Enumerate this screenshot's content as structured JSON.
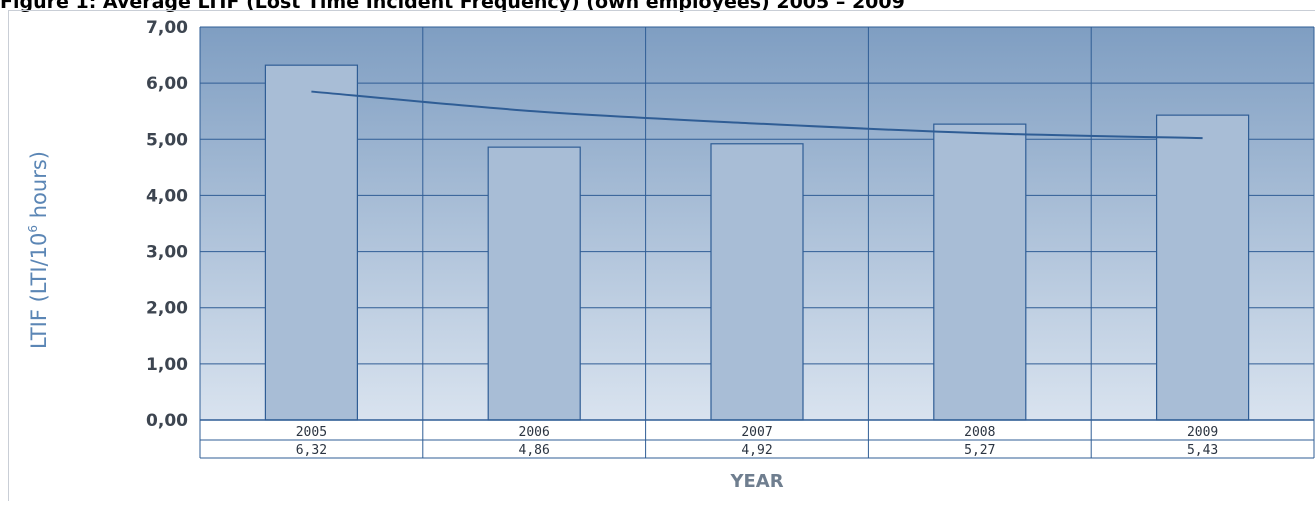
{
  "title": "Figure 1: Average LTIF (Lost Time Incident Frequency) (own employees) 2005 – 2009",
  "chart_data": {
    "type": "bar",
    "categories": [
      "2005",
      "2006",
      "2007",
      "2008",
      "2009"
    ],
    "values": [
      6.32,
      4.86,
      4.92,
      5.27,
      5.43
    ],
    "value_labels": [
      "6,32",
      "4,86",
      "4,92",
      "5,27",
      "5,43"
    ],
    "trendline": [
      5.85,
      5.5,
      5.28,
      5.11,
      5.02
    ],
    "ylim": [
      0,
      7
    ],
    "yticks": [
      "0,00",
      "1,00",
      "2,00",
      "3,00",
      "4,00",
      "5,00",
      "6,00",
      "7,00"
    ],
    "xlabel": "YEAR",
    "ylabel_main": "LTIF (LTI/10",
    "ylabel_sup": "6",
    "ylabel_tail": " hours)",
    "grid": true,
    "colors": {
      "bar_fill": "#a8bdd6",
      "bar_stroke": "#2f5d95",
      "grid": "#2f5d95",
      "trend": "#2f5d95",
      "bg_top": "#7f9ec2",
      "bg_bottom": "#d9e3ef"
    }
  }
}
